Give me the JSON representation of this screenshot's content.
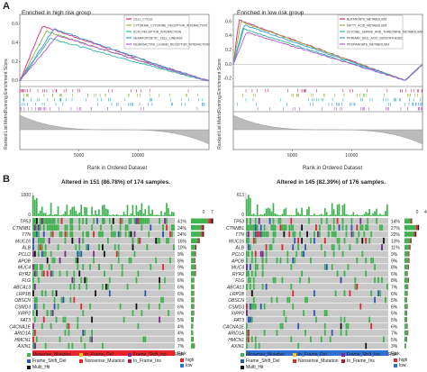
{
  "panel_a": {
    "letter": "A",
    "left": {
      "title": "Enriched in high risk group",
      "ylabel_top": "Running Enrichment Score",
      "ylabel_bottom": "Ranked List Metric",
      "xlabel": "Rank in Ordered Dataset",
      "yticks": [
        "0.6",
        "0.4",
        "0.2",
        "0.0"
      ],
      "xticks": [
        "5000",
        "10000"
      ],
      "legend": [
        {
          "label": "CELL_CYCLE",
          "color": "#d62a7a"
        },
        {
          "label": "CYTOKINE_CYTOKINE_RECEPTOR_INTERACTION",
          "color": "#8db33a"
        },
        {
          "label": "ECM_RECEPTOR_INTERACTION",
          "color": "#2fb5a6"
        },
        {
          "label": "HEMATOPOIETIC_CELL_LINEAGE",
          "color": "#3e9ad6"
        },
        {
          "label": "NEUROACTIVE_LIGAND_RECEPTOR_INTERACTION",
          "color": "#b25ad6"
        }
      ]
    },
    "right": {
      "title": "Enriched in low risk group",
      "ylabel_top": "Running Enrichment Score",
      "ylabel_bottom": "Ranked List Metric",
      "xlabel": "Rank in Ordered Dataset",
      "yticks": [
        "0.6",
        "0.4",
        "0.2",
        "0.0",
        "-0.2"
      ],
      "xticks": [
        "5000",
        "10000"
      ],
      "legend": [
        {
          "label": "BUTANOATE_METABOLISM",
          "color": "#d62a7a"
        },
        {
          "label": "FATTY_ACID_METABOLISM",
          "color": "#8db33a"
        },
        {
          "label": "GLYCINE_SERINE_AND_THREONINE_METABOLISM",
          "color": "#2fb5a6"
        },
        {
          "label": "PRIMARY_BILE_ACID_BIOSYNTHESIS",
          "color": "#3e9ad6"
        },
        {
          "label": "PROPANOATE_METABOLISM",
          "color": "#b25ad6"
        }
      ]
    }
  },
  "panel_b": {
    "letter": "B",
    "left": {
      "title": "Altered in 151 (86.78%) of 174 samples.",
      "ymax": "1000",
      "ymin": "0",
      "side_axis": [
        "0",
        "72"
      ],
      "risk_label": "Risk",
      "risk_color": "#e8232a",
      "genes": [
        {
          "name": "TP53",
          "pct": "41%"
        },
        {
          "name": "CTNNB1",
          "pct": "24%"
        },
        {
          "name": "TTN",
          "pct": "24%"
        },
        {
          "name": "MUC16",
          "pct": "16%"
        },
        {
          "name": "ALB",
          "pct": "10%"
        },
        {
          "name": "PCLO",
          "pct": "9%"
        },
        {
          "name": "APOB",
          "pct": "8%"
        },
        {
          "name": "MUC4",
          "pct": "9%"
        },
        {
          "name": "RYR2",
          "pct": "9%"
        },
        {
          "name": "FLG",
          "pct": "6%"
        },
        {
          "name": "ABCA13",
          "pct": "6%"
        },
        {
          "name": "LRP1B",
          "pct": "6%"
        },
        {
          "name": "OBSCN",
          "pct": "6%"
        },
        {
          "name": "CSMD3",
          "pct": "6%"
        },
        {
          "name": "XIRP2",
          "pct": "6%"
        },
        {
          "name": "FAT3",
          "pct": "5%"
        },
        {
          "name": "CACNA1E",
          "pct": "4%"
        },
        {
          "name": "ARID1A",
          "pct": "4%"
        },
        {
          "name": "HMCN1",
          "pct": "5%"
        },
        {
          "name": "AXIN1",
          "pct": "7%"
        }
      ]
    },
    "right": {
      "title": "Altered in 145 (82.39%) of 176 samples.",
      "ymax": "613",
      "ymin": "0",
      "side_axis": [
        "0",
        "48"
      ],
      "risk_label": "Risk",
      "risk_color": "#2f6fd6",
      "genes": [
        {
          "name": "TP53",
          "pct": "14%"
        },
        {
          "name": "CTNNB1",
          "pct": "27%"
        },
        {
          "name": "TTN",
          "pct": "22%"
        },
        {
          "name": "MUC16",
          "pct": "13%"
        },
        {
          "name": "ALB",
          "pct": "11%"
        },
        {
          "name": "PCLO",
          "pct": "9%"
        },
        {
          "name": "APOB",
          "pct": "9%"
        },
        {
          "name": "MUC4",
          "pct": "8%"
        },
        {
          "name": "RYR2",
          "pct": "6%"
        },
        {
          "name": "FLG",
          "pct": "8%"
        },
        {
          "name": "ABCA13",
          "pct": "7%"
        },
        {
          "name": "LRP1B",
          "pct": "6%"
        },
        {
          "name": "OBSCN",
          "pct": "5%"
        },
        {
          "name": "CSMD3",
          "pct": "6%"
        },
        {
          "name": "XIRP2",
          "pct": "5%"
        },
        {
          "name": "FAT3",
          "pct": "5%"
        },
        {
          "name": "CACNA1E",
          "pct": "6%"
        },
        {
          "name": "ARID1A",
          "pct": "7%"
        },
        {
          "name": "HMCN1",
          "pct": "5%"
        },
        {
          "name": "AXIN1",
          "pct": "3%"
        }
      ]
    },
    "mutation_legend": [
      {
        "label": "Missense_Mutation",
        "color": "#3fb34f"
      },
      {
        "label": "In_Frame_Del",
        "color": "#f2c418"
      },
      {
        "label": "Frame_Shift_Ins",
        "color": "#7a2a8c"
      },
      {
        "label": "In_Frame_Ins",
        "color": "#b5163a"
      },
      {
        "label": "Frame_Shift_Del",
        "color": "#2a55b5"
      },
      {
        "label": "Nonsense_Mutation",
        "color": "#e0262e"
      },
      {
        "label": "Multi_Hit",
        "color": "#111111"
      }
    ],
    "risk_legend": {
      "title": "Risk",
      "items": [
        {
          "label": "high",
          "color": "#e8232a"
        },
        {
          "label": "low",
          "color": "#2f6fd6"
        }
      ]
    },
    "cell_bg": "#c8c8c8"
  }
}
